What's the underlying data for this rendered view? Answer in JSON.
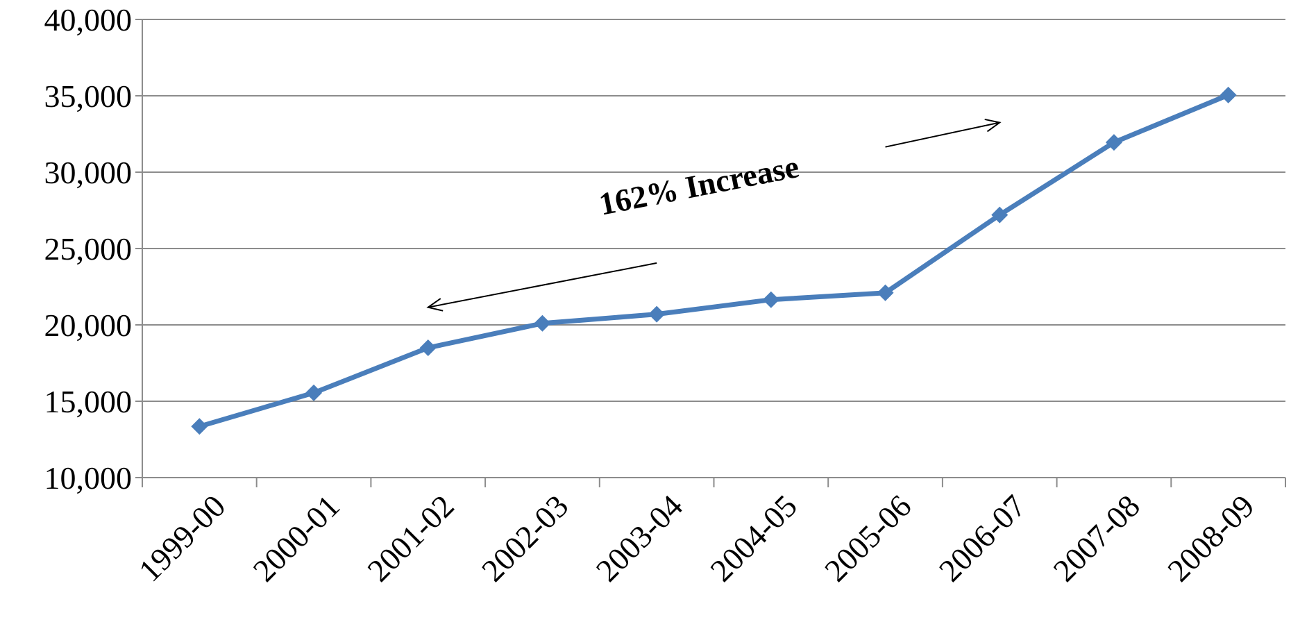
{
  "chart_data": {
    "type": "line",
    "categories": [
      "1999-00",
      "2000-01",
      "2001-02",
      "2002-03",
      "2003-04",
      "2004-05",
      "2005-06",
      "2006-07",
      "2007-08",
      "2008-09"
    ],
    "series": [
      {
        "values": [
          13350,
          15550,
          18500,
          20100,
          20700,
          21650,
          22100,
          27200,
          31950,
          35050
        ],
        "color": "#4a7ebb",
        "marker": "diamond"
      }
    ],
    "yticks": [
      "10,000",
      "15,000",
      "20,000",
      "25,000",
      "30,000",
      "35,000",
      "40,000"
    ],
    "ylim": [
      10000,
      40000
    ],
    "ystep": 5000,
    "grid": true,
    "annotation": {
      "text": "162% Increase",
      "arrow_from": {
        "x": "2005-06",
        "y": 31650
      },
      "arrow_to": {
        "x": "2006-07",
        "y": 33250
      },
      "arrow_back_from": {
        "x": "2003-04",
        "y": 24050
      },
      "arrow_back_to": {
        "x": "2001-02",
        "y": 21150
      }
    }
  }
}
